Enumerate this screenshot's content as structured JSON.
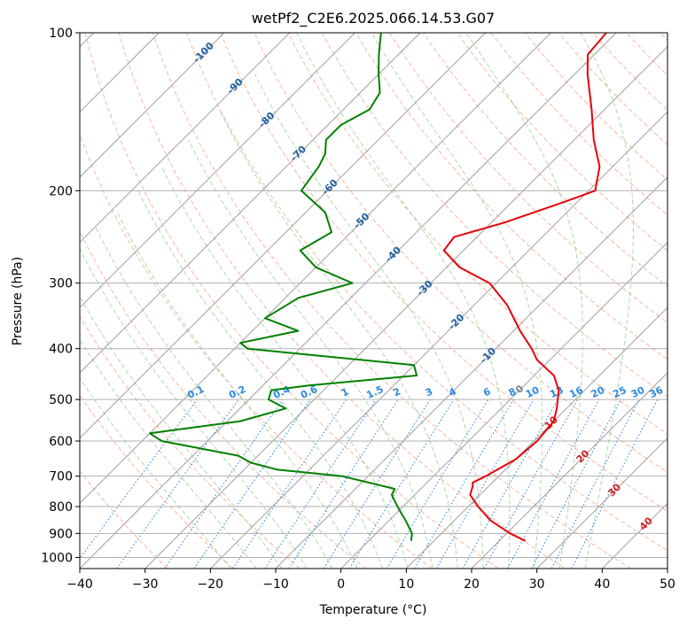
{
  "chart_data": {
    "type": "line",
    "title": "wetPf2_C2E6.2025.066.14.53.G07",
    "xlabel": "Temperature (°C)",
    "ylabel": "Pressure (hPa)",
    "xlim": [
      -40,
      50
    ],
    "ylim": [
      1050,
      100
    ],
    "y_scale": "log",
    "grid": true,
    "x_ticks": [
      -40,
      -30,
      -20,
      -10,
      0,
      10,
      20,
      30,
      40,
      50
    ],
    "x_tick_labels": [
      "−40",
      "−30",
      "−20",
      "−10",
      "0",
      "10",
      "20",
      "30",
      "40",
      "50"
    ],
    "y_ticks": [
      100,
      200,
      300,
      400,
      500,
      600,
      700,
      800,
      900,
      1000
    ],
    "y_tick_labels": [
      "100",
      "200",
      "300",
      "400",
      "500",
      "600",
      "700",
      "800",
      "900",
      "1000"
    ],
    "skew_factor": 1.0,
    "colors": {
      "temperature": "#e8000b",
      "dewpoint": "#008000",
      "dry_adiabat": "#f5a07a",
      "moist_adiabat": "#9acd9a",
      "mixing_ratio": "#2a7fd4",
      "isotherm": "#a0a0a0",
      "grid": "#b0b0b0",
      "isotherm_label_blue": "#2060a0",
      "isotherm_label_red": "#d02020",
      "isotherm_label_gray": "#808080",
      "mixing_label": "#2a8ae0"
    },
    "series": [
      {
        "key": "temperature",
        "pressure": [
          930,
          900,
          850,
          800,
          760,
          730,
          720,
          700,
          650,
          600,
          550,
          520,
          480,
          450,
          420,
          400,
          370,
          330,
          300,
          280,
          260,
          245,
          230,
          210,
          200,
          180,
          160,
          140,
          120,
          110,
          100
        ],
        "values": [
          24,
          20.5,
          15.5,
          11.5,
          8.5,
          7.5,
          7.0,
          8.0,
          10.0,
          10.5,
          10.0,
          8.5,
          6.0,
          3.0,
          -2.0,
          -4.5,
          -9.0,
          -15.0,
          -21.0,
          -28.0,
          -33.0,
          -33.5,
          -28.0,
          -22.0,
          -19.0,
          -22.0,
          -27.0,
          -32.0,
          -38.0,
          -41.0,
          -41.5
        ]
      },
      {
        "key": "dewpoint",
        "pressure": [
          930,
          900,
          850,
          820,
          790,
          760,
          740,
          700,
          680,
          660,
          640,
          600,
          580,
          550,
          520,
          500,
          480,
          470,
          450,
          430,
          400,
          390,
          370,
          350,
          320,
          300,
          280,
          260,
          240,
          220,
          200,
          180,
          170,
          160,
          150,
          140,
          130,
          120,
          110,
          100
        ],
        "values": [
          6.5,
          5.5,
          2.5,
          0.5,
          -1.5,
          -3.5,
          -4.0,
          -14.0,
          -25.0,
          -30.0,
          -33.0,
          -47.0,
          -50.0,
          -38.0,
          -33.0,
          -37.0,
          -38.0,
          -33.0,
          -18.0,
          -20.0,
          -48.0,
          -50.0,
          -43.0,
          -50.0,
          -48.0,
          -42.0,
          -50.0,
          -55.0,
          -53.0,
          -57.0,
          -64.0,
          -65.0,
          -66.0,
          -68.0,
          -68.0,
          -66.0,
          -67.0,
          -70.0,
          -73.0,
          -76.0
        ]
      }
    ],
    "isotherm_labels": [
      {
        "value": -100,
        "label": "-100"
      },
      {
        "value": -90,
        "label": "-90"
      },
      {
        "value": -80,
        "label": "-80"
      },
      {
        "value": -70,
        "label": "-70"
      },
      {
        "value": -60,
        "label": "-60"
      },
      {
        "value": -50,
        "label": "-50"
      },
      {
        "value": -40,
        "label": "-40"
      },
      {
        "value": -30,
        "label": "-30"
      },
      {
        "value": -20,
        "label": "-20"
      },
      {
        "value": -10,
        "label": "-10"
      },
      {
        "value": 0,
        "label": "0"
      },
      {
        "value": 10,
        "label": "10"
      },
      {
        "value": 20,
        "label": "20"
      },
      {
        "value": 30,
        "label": "30"
      },
      {
        "value": 40,
        "label": "40"
      }
    ],
    "mixing_ratio_lines": [
      {
        "value": 0.1,
        "label": "0.1"
      },
      {
        "value": 0.2,
        "label": "0.2"
      },
      {
        "value": 0.4,
        "label": "0.4"
      },
      {
        "value": 0.6,
        "label": "0.6"
      },
      {
        "value": 1,
        "label": "1"
      },
      {
        "value": 1.5,
        "label": "1.5"
      },
      {
        "value": 2,
        "label": "2"
      },
      {
        "value": 3,
        "label": "3"
      },
      {
        "value": 4,
        "label": "4"
      },
      {
        "value": 6,
        "label": "6"
      },
      {
        "value": 8,
        "label": "8"
      },
      {
        "value": 10,
        "label": "10"
      },
      {
        "value": 13,
        "label": "13"
      },
      {
        "value": 16,
        "label": "16"
      },
      {
        "value": 20,
        "label": "20"
      },
      {
        "value": 25,
        "label": "25"
      },
      {
        "value": 30,
        "label": "30"
      },
      {
        "value": 36,
        "label": "36"
      }
    ]
  }
}
